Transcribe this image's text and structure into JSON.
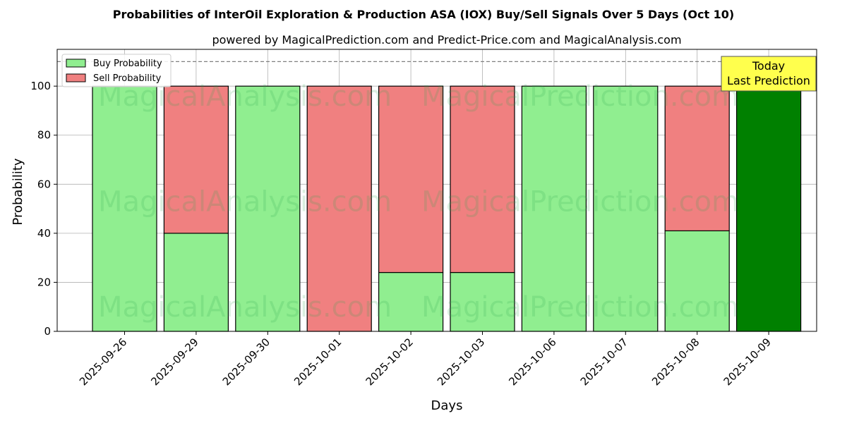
{
  "chart_data": {
    "type": "bar",
    "stacked": true,
    "title": "Probabilities of InterOil Exploration & Production ASA (IOX) Buy/Sell Signals Over 5 Days (Oct 10)",
    "subtitle": "powered by MagicalPrediction.com and Predict-Price.com and MagicalAnalysis.com",
    "xlabel": "Days",
    "ylabel": "Probability",
    "ylim": [
      0,
      115
    ],
    "yticks": [
      0,
      20,
      40,
      60,
      80,
      100
    ],
    "grid": true,
    "reference_line": 110,
    "legend_position": "top-left",
    "categories": [
      "2025-09-26",
      "2025-09-29",
      "2025-09-30",
      "2025-10-01",
      "2025-10-02",
      "2025-10-03",
      "2025-10-06",
      "2025-10-07",
      "2025-10-08",
      "2025-10-09"
    ],
    "series": [
      {
        "name": "Buy Probability",
        "color": "#90ee90",
        "values": [
          100,
          40,
          100,
          0,
          24,
          24,
          100,
          100,
          41,
          100
        ]
      },
      {
        "name": "Sell Probability",
        "color": "#f08080",
        "values": [
          0,
          60,
          0,
          100,
          76,
          76,
          0,
          0,
          59,
          0
        ]
      }
    ],
    "highlight": {
      "index": 9,
      "color": "#008000"
    },
    "annotation": {
      "line1": "Today",
      "line2": "Last Prediction",
      "color": "#ffff4d"
    },
    "watermarks": [
      "MagicalAnalysis.com",
      "MagicalPrediction.com"
    ]
  }
}
